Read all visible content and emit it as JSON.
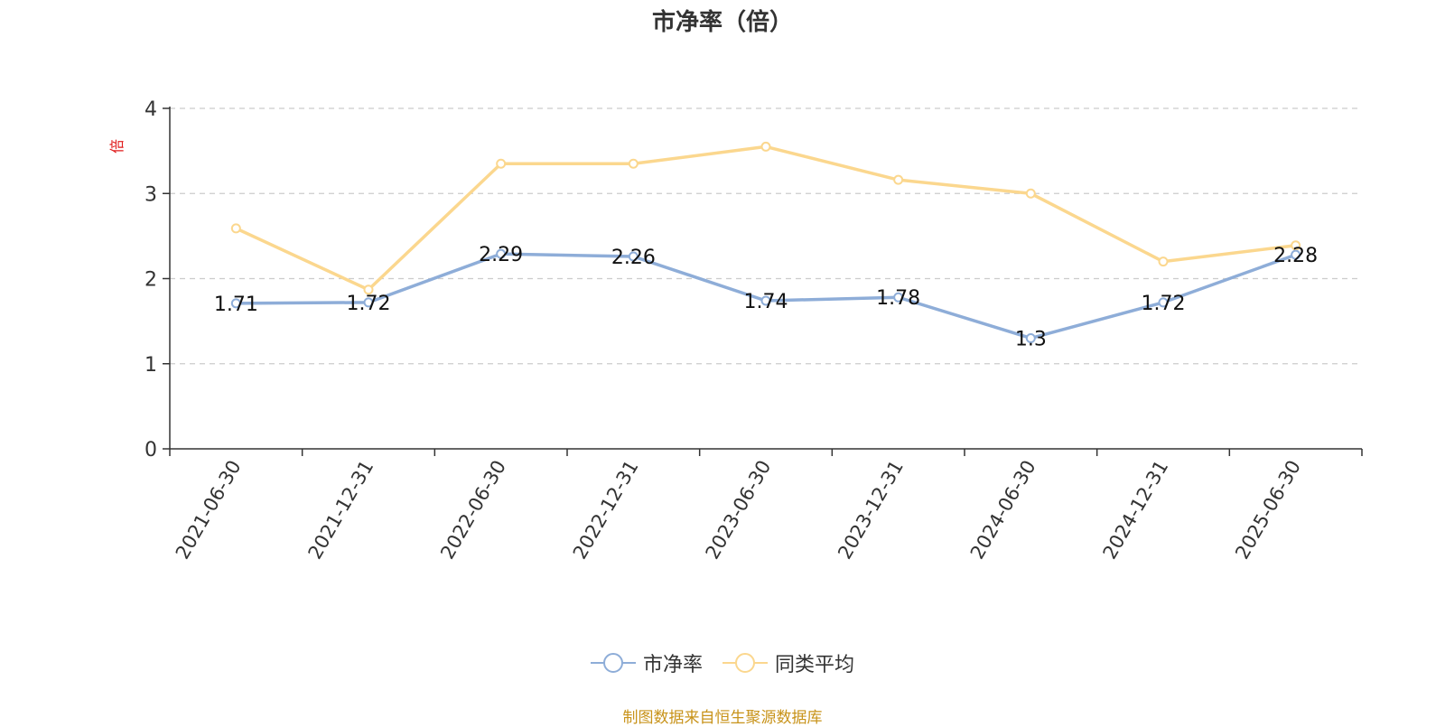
{
  "chart_data": {
    "type": "line",
    "title": "市净率（倍）",
    "ylabel": "倍",
    "categories": [
      "2021-06-30",
      "2021-12-31",
      "2022-06-30",
      "2022-12-31",
      "2023-06-30",
      "2023-12-31",
      "2024-06-30",
      "2024-12-31",
      "2025-06-30"
    ],
    "y_ticks": [
      "0",
      "1",
      "2",
      "3",
      "4"
    ],
    "ylim": [
      0,
      4
    ],
    "grid": true,
    "legend_position": "bottom",
    "series": [
      {
        "name": "市净率",
        "color": "#8eadd8",
        "values": [
          1.71,
          1.72,
          2.29,
          2.26,
          1.74,
          1.78,
          1.3,
          1.72,
          2.28
        ],
        "labels": [
          "1.71",
          "1.72",
          "2.29",
          "2.26",
          "1.74",
          "1.78",
          "1.3",
          "1.72",
          "2.28"
        ]
      },
      {
        "name": "同类平均",
        "color": "#fbd78e",
        "values": [
          2.59,
          1.87,
          3.35,
          3.35,
          3.55,
          3.16,
          3.0,
          2.2,
          2.39
        ]
      }
    ]
  },
  "source_note": "制图数据来自恒生聚源数据库"
}
